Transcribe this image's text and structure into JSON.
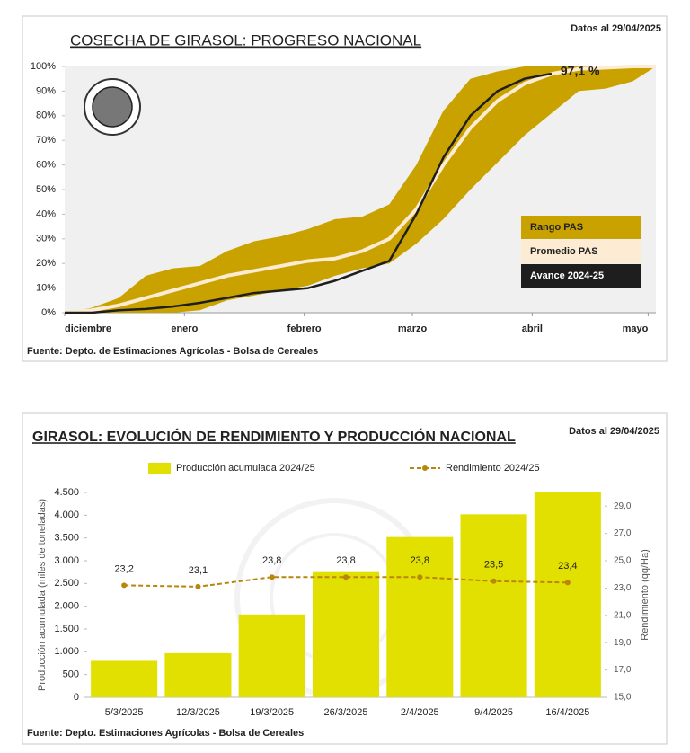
{
  "chart_data": [
    {
      "type": "line",
      "title": "COSECHA DE GIRASOL: PROGRESO NACIONAL",
      "note": "Datos al 29/04/2025",
      "source": "Fuente: Depto. de Estimaciones Agrícolas - Bolsa de Cereales",
      "annotation": "97,1 %",
      "x": [
        0,
        7,
        14,
        21,
        28,
        35,
        42,
        49,
        56,
        63,
        70,
        77,
        84,
        91,
        98,
        105,
        112,
        119,
        126,
        133,
        140,
        147,
        153
      ],
      "xlim": [
        0,
        153
      ],
      "xticks": [
        {
          "value": 0,
          "label": "diciembre"
        },
        {
          "value": 31,
          "label": "enero"
        },
        {
          "value": 62,
          "label": "febrero"
        },
        {
          "value": 90,
          "label": "marzo"
        },
        {
          "value": 121,
          "label": "abril"
        },
        {
          "value": 151,
          "label": "mayo"
        }
      ],
      "ylim": [
        0,
        100
      ],
      "yticks": [
        {
          "value": 0,
          "label": "0%"
        },
        {
          "value": 10,
          "label": "10%"
        },
        {
          "value": 20,
          "label": "20%"
        },
        {
          "value": 30,
          "label": "30%"
        },
        {
          "value": 40,
          "label": "40%"
        },
        {
          "value": 50,
          "label": "50%"
        },
        {
          "value": 60,
          "label": "60%"
        },
        {
          "value": 70,
          "label": "70%"
        },
        {
          "value": 80,
          "label": "80%"
        },
        {
          "value": 90,
          "label": "90%"
        },
        {
          "value": 100,
          "label": "100%"
        }
      ],
      "grid": false,
      "series": [
        {
          "name": "Rango PAS",
          "color": "#c9a200",
          "values": [
            0,
            2,
            6,
            15,
            18,
            19,
            25,
            29,
            31,
            34,
            38,
            39,
            44,
            60,
            82,
            95,
            98,
            100,
            100,
            100,
            100,
            100,
            100
          ],
          "lower": [
            0,
            0,
            0,
            0,
            0,
            1,
            5,
            7,
            9,
            11,
            15,
            18,
            20,
            28,
            38,
            50,
            61,
            72,
            81,
            90,
            91,
            94,
            100
          ]
        },
        {
          "name": "Promedio PAS",
          "color": "#fdebd3",
          "values": [
            0,
            1,
            3,
            6,
            9,
            12,
            15,
            17,
            19,
            21,
            22,
            25,
            30,
            42,
            60,
            75,
            86,
            93,
            97,
            99,
            99.5,
            100,
            100
          ]
        },
        {
          "name": "Avance 2024-25",
          "color": "#1e1e1e",
          "values": [
            0,
            0,
            1,
            1.5,
            2.5,
            4,
            6,
            8,
            9,
            10,
            13,
            17,
            21,
            40,
            63,
            80,
            90,
            95,
            97.1,
            null,
            null,
            null,
            null
          ]
        }
      ]
    },
    {
      "type": "combo",
      "title": "GIRASOL: EVOLUCIÓN DE RENDIMIENTO Y PRODUCCIÓN NACIONAL",
      "note": "Datos al 29/04/2025",
      "source": "Fuente: Depto. Estimaciones Agrícolas - Bolsa de Cereales",
      "ylabel": "Producción acumulada (miles de toneladas)",
      "y2label": "Rendimiento (qq/Ha)",
      "categories": [
        "5/3/2025",
        "12/3/2025",
        "19/3/2025",
        "26/3/2025",
        "2/4/2025",
        "9/4/2025",
        "16/4/2025"
      ],
      "ylim": [
        0,
        4500
      ],
      "yticks": [
        0,
        500,
        {
          "value": 1000,
          "label": "1.000"
        },
        {
          "value": 1500,
          "label": "1.500"
        },
        {
          "value": 2000,
          "label": "2.000"
        },
        {
          "value": 2500,
          "label": "2.500"
        },
        {
          "value": 3000,
          "label": "3.000"
        },
        {
          "value": 3500,
          "label": "3.500"
        },
        {
          "value": 4000,
          "label": "4.000"
        },
        {
          "value": 4500,
          "label": "4.500"
        }
      ],
      "y2lim": [
        15,
        30
      ],
      "y2ticks": [
        {
          "value": 15,
          "label": "15,0"
        },
        {
          "value": 17,
          "label": "17,0"
        },
        {
          "value": 19,
          "label": "19,0"
        },
        {
          "value": 21,
          "label": "21,0"
        },
        {
          "value": 23,
          "label": "23,0"
        },
        {
          "value": 25,
          "label": "25,0"
        },
        {
          "value": 27,
          "label": "27,0"
        },
        {
          "value": 29,
          "label": "29,0"
        }
      ],
      "grid": false,
      "series": [
        {
          "name": "Producción acumulada 2024/25",
          "type": "bar",
          "color": "#e2e000",
          "values": [
            800,
            970,
            1820,
            2750,
            3520,
            4020,
            4500
          ]
        },
        {
          "name": "Rendimiento 2024/25",
          "type": "line",
          "axis": "y2",
          "color": "#b8860b",
          "values": [
            23.2,
            23.1,
            23.8,
            23.8,
            23.8,
            23.5,
            23.4
          ],
          "value_labels": [
            "23,2",
            "23,1",
            "23,8",
            "23,8",
            "23,8",
            "23,5",
            "23,4"
          ]
        }
      ]
    }
  ]
}
